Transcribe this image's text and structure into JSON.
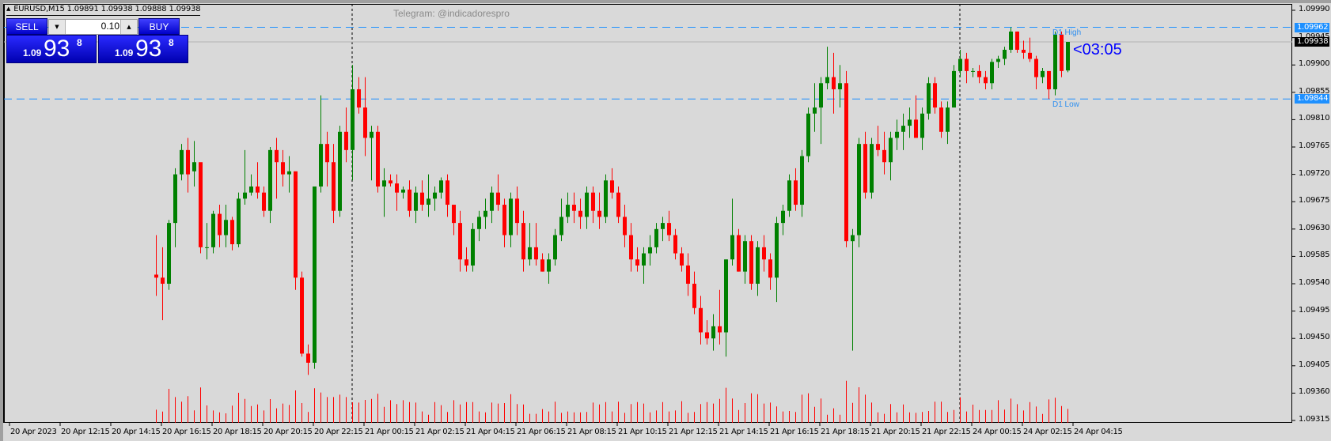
{
  "header": {
    "symbol_line": "EURUSD,M15  1.09891 1.09938 1.09888 1.09938",
    "watermark": "Telegram: @indicadorespro"
  },
  "trade_panel": {
    "sell_label": "SELL",
    "buy_label": "BUY",
    "lot_value": "0.10",
    "lot_down_icon": "▼",
    "lot_up_icon": "▲",
    "sell_price": {
      "prefix": "1.09",
      "big": "93",
      "sup": "8"
    },
    "buy_price": {
      "prefix": "1.09",
      "big": "93",
      "sup": "8"
    }
  },
  "countdown": "<03:05",
  "levels": {
    "d1_high": {
      "label": "D1 High",
      "price": "1.09962",
      "color": "#1e90ff"
    },
    "d1_low": {
      "label": "D1 Low",
      "price": "1.09844",
      "color": "#1e90ff"
    },
    "bid": {
      "price": "1.09938"
    }
  },
  "colors": {
    "background": "#d9d9d9",
    "bull": "#008000",
    "bear": "#ff0000",
    "volume": "#ff0000",
    "level_line": "#1e90ff",
    "bid_line": "#b4b4b4"
  },
  "chart_data": {
    "type": "candlestick",
    "title": "EURUSD,M15",
    "ohlc_header": {
      "open": 1.09891,
      "high": 1.09938,
      "low": 1.09888,
      "close": 1.09938
    },
    "ylim": [
      1.09315,
      1.09995
    ],
    "y_ticks": [
      "1.09990",
      "1.09945",
      "1.09900",
      "1.09855",
      "1.09810",
      "1.09765",
      "1.09720",
      "1.09675",
      "1.09630",
      "1.09585",
      "1.09540",
      "1.09495",
      "1.09450",
      "1.09405",
      "1.09360",
      "1.09315"
    ],
    "x_ticks": [
      "20 Apr 2023",
      "20 Apr 12:15",
      "20 Apr 14:15",
      "20 Apr 16:15",
      "20 Apr 18:15",
      "20 Apr 20:15",
      "20 Apr 22:15",
      "21 Apr 00:15",
      "21 Apr 02:15",
      "21 Apr 04:15",
      "21 Apr 06:15",
      "21 Apr 08:15",
      "21 Apr 10:15",
      "21 Apr 12:15",
      "21 Apr 14:15",
      "21 Apr 16:15",
      "21 Apr 18:15",
      "21 Apr 20:15",
      "21 Apr 22:15",
      "24 Apr 00:15",
      "24 Apr 02:15",
      "24 Apr 04:15"
    ],
    "horizontal_levels": [
      {
        "name": "D1 High",
        "value": 1.09962
      },
      {
        "name": "D1 Low",
        "value": 1.09844
      },
      {
        "name": "Bid",
        "value": 1.09938
      }
    ],
    "period_separators": [
      "21 Apr 00:00",
      "24 Apr 00:00"
    ],
    "candles": [
      [
        1.09555,
        1.0962,
        1.0952,
        1.0955
      ],
      [
        1.0955,
        1.096,
        1.0948,
        1.0954
      ],
      [
        1.0954,
        1.09645,
        1.0953,
        1.0964
      ],
      [
        1.0964,
        1.0973,
        1.096,
        1.0972
      ],
      [
        1.0972,
        1.0977,
        1.0971,
        1.0976
      ],
      [
        1.0976,
        1.0978,
        1.0969,
        1.0972
      ],
      [
        1.09725,
        1.09775,
        1.097,
        1.0974
      ],
      [
        1.0974,
        1.09725,
        1.0959,
        1.096
      ],
      [
        1.096,
        1.0964,
        1.0958,
        1.096
      ],
      [
        1.096,
        1.0966,
        1.0959,
        1.09655
      ],
      [
        1.09655,
        1.0967,
        1.096,
        1.0962
      ],
      [
        1.0962,
        1.0967,
        1.096,
        1.09645
      ],
      [
        1.09645,
        1.0965,
        1.09595,
        1.09605
      ],
      [
        1.09605,
        1.0969,
        1.096,
        1.0968
      ],
      [
        1.0968,
        1.0976,
        1.0967,
        1.0969
      ],
      [
        1.0969,
        1.0972,
        1.09685,
        1.097
      ],
      [
        1.097,
        1.0974,
        1.0968,
        1.0969
      ],
      [
        1.0969,
        1.097,
        1.0965,
        1.0966
      ],
      [
        1.0966,
        1.09765,
        1.0964,
        1.0976
      ],
      [
        1.0976,
        1.0978,
        1.0968,
        1.0974
      ],
      [
        1.0974,
        1.0976,
        1.097,
        1.0972
      ],
      [
        1.0972,
        1.0975,
        1.0969,
        1.09725
      ],
      [
        1.09725,
        1.0968,
        1.0953,
        1.0955
      ],
      [
        1.0955,
        1.0956,
        1.0942,
        1.09425
      ],
      [
        1.09425,
        1.0944,
        1.0939,
        1.0941
      ],
      [
        1.0941,
        1.097,
        1.094,
        1.097
      ],
      [
        1.097,
        1.0985,
        1.0969,
        1.0977
      ],
      [
        1.0977,
        1.0979,
        1.097,
        1.0974
      ],
      [
        1.0974,
        1.0977,
        1.0964,
        1.0966
      ],
      [
        1.0966,
        1.098,
        1.0965,
        1.0979
      ],
      [
        1.0979,
        1.0983,
        1.0974,
        1.0976
      ],
      [
        1.0976,
        1.099,
        1.0971,
        1.0986
      ],
      [
        1.0986,
        1.0988,
        1.0982,
        1.0983
      ],
      [
        1.0983,
        1.0988,
        1.0975,
        1.0978
      ],
      [
        1.0978,
        1.098,
        1.0971,
        1.0979
      ],
      [
        1.0979,
        1.098,
        1.0969,
        1.097
      ],
      [
        1.097,
        1.0973,
        1.0965,
        1.0971
      ],
      [
        1.0971,
        1.0972,
        1.097,
        1.09705
      ],
      [
        1.09705,
        1.0972,
        1.0966,
        1.0969
      ],
      [
        1.0969,
        1.097,
        1.0968,
        1.09695
      ],
      [
        1.09695,
        1.0971,
        1.0965,
        1.0966
      ],
      [
        1.0966,
        1.097,
        1.0964,
        1.0969
      ],
      [
        1.0969,
        1.0971,
        1.0966,
        1.0967
      ],
      [
        1.0967,
        1.0972,
        1.0965,
        1.0968
      ],
      [
        1.0968,
        1.097,
        1.0966,
        1.0969
      ],
      [
        1.0969,
        1.09715,
        1.0968,
        1.0971
      ],
      [
        1.0971,
        1.0972,
        1.0965,
        1.0967
      ],
      [
        1.0967,
        1.0966,
        1.0962,
        1.0964
      ],
      [
        1.0964,
        1.0966,
        1.0956,
        1.0958
      ],
      [
        1.0958,
        1.096,
        1.0956,
        1.0957
      ],
      [
        1.0957,
        1.0964,
        1.0956,
        1.0963
      ],
      [
        1.0963,
        1.0966,
        1.0961,
        1.0965
      ],
      [
        1.0965,
        1.0968,
        1.0963,
        1.0966
      ],
      [
        1.0966,
        1.097,
        1.0964,
        1.0969
      ],
      [
        1.0969,
        1.0972,
        1.0966,
        1.0967
      ],
      [
        1.0967,
        1.0968,
        1.096,
        1.0962
      ],
      [
        1.0962,
        1.0969,
        1.096,
        1.0968
      ],
      [
        1.0968,
        1.097,
        1.0962,
        1.0964
      ],
      [
        1.0964,
        1.0966,
        1.0956,
        1.0958
      ],
      [
        1.0958,
        1.0964,
        1.0957,
        1.096
      ],
      [
        1.096,
        1.0964,
        1.0957,
        1.0958
      ],
      [
        1.0958,
        1.0959,
        1.0956,
        1.0956
      ],
      [
        1.0956,
        1.0959,
        1.0954,
        1.0958
      ],
      [
        1.0958,
        1.0963,
        1.0957,
        1.0962
      ],
      [
        1.0962,
        1.0968,
        1.0961,
        1.0965
      ],
      [
        1.0965,
        1.0969,
        1.0964,
        1.0967
      ],
      [
        1.0967,
        1.0969,
        1.0964,
        1.0966
      ],
      [
        1.0966,
        1.0968,
        1.0963,
        1.0965
      ],
      [
        1.0965,
        1.097,
        1.0963,
        1.0969
      ],
      [
        1.0969,
        1.097,
        1.0964,
        1.0966
      ],
      [
        1.0966,
        1.0969,
        1.0963,
        1.0965
      ],
      [
        1.0965,
        1.0972,
        1.0964,
        1.0971
      ],
      [
        1.0971,
        1.0973,
        1.0968,
        1.0969
      ],
      [
        1.0969,
        1.097,
        1.0964,
        1.0965
      ],
      [
        1.0965,
        1.0967,
        1.096,
        1.0962
      ],
      [
        1.0962,
        1.0964,
        1.0956,
        1.0958
      ],
      [
        1.0958,
        1.096,
        1.0956,
        1.0957
      ],
      [
        1.0957,
        1.096,
        1.0954,
        1.0959
      ],
      [
        1.0959,
        1.0962,
        1.0957,
        1.096
      ],
      [
        1.096,
        1.0964,
        1.0959,
        1.0963
      ],
      [
        1.0963,
        1.0965,
        1.0961,
        1.0964
      ],
      [
        1.0964,
        1.0966,
        1.0961,
        1.0962
      ],
      [
        1.0962,
        1.0963,
        1.0958,
        1.0959
      ],
      [
        1.0959,
        1.096,
        1.0956,
        1.0957
      ],
      [
        1.0957,
        1.0959,
        1.0952,
        1.0954
      ],
      [
        1.0954,
        1.0956,
        1.0949,
        1.095
      ],
      [
        1.095,
        1.0952,
        1.0944,
        1.0946
      ],
      [
        1.0946,
        1.0948,
        1.0944,
        1.0945
      ],
      [
        1.0945,
        1.0949,
        1.0943,
        1.0947
      ],
      [
        1.0947,
        1.0953,
        1.0944,
        1.0946
      ],
      [
        1.0946,
        1.0958,
        1.0942,
        1.0958
      ],
      [
        1.0958,
        1.0968,
        1.0957,
        1.0962
      ],
      [
        1.0962,
        1.0963,
        1.0956,
        1.0956
      ],
      [
        1.0956,
        1.0962,
        1.0954,
        1.0961
      ],
      [
        1.0961,
        1.0962,
        1.0953,
        1.0954
      ],
      [
        1.0954,
        1.0961,
        1.0952,
        1.096
      ],
      [
        1.096,
        1.0962,
        1.0956,
        1.0958
      ],
      [
        1.0958,
        1.0959,
        1.0953,
        1.0955
      ],
      [
        1.0955,
        1.0965,
        1.0951,
        1.0964
      ],
      [
        1.0964,
        1.0967,
        1.0962,
        1.0966
      ],
      [
        1.0966,
        1.0972,
        1.0965,
        1.0971
      ],
      [
        1.0971,
        1.0973,
        1.0966,
        1.0967
      ],
      [
        1.0967,
        1.0976,
        1.0965,
        1.0975
      ],
      [
        1.0975,
        1.0983,
        1.0974,
        1.0982
      ],
      [
        1.0982,
        1.0987,
        1.0979,
        1.0983
      ],
      [
        1.0983,
        1.0988,
        1.0977,
        1.0987
      ],
      [
        1.0987,
        1.0993,
        1.0986,
        1.0988
      ],
      [
        1.0988,
        1.0992,
        1.0982,
        1.0986
      ],
      [
        1.0986,
        1.099,
        1.0983,
        1.0987
      ],
      [
        1.0987,
        1.0989,
        1.096,
        1.0961
      ],
      [
        1.0961,
        1.0963,
        1.0943,
        1.0962
      ],
      [
        1.0962,
        1.0978,
        1.096,
        1.0977
      ],
      [
        1.0977,
        1.0979,
        1.0968,
        1.0969
      ],
      [
        1.0969,
        1.0978,
        1.0968,
        1.0977
      ],
      [
        1.0977,
        1.098,
        1.0975,
        1.0976
      ],
      [
        1.0976,
        1.0979,
        1.0972,
        1.0974
      ],
      [
        1.0974,
        1.0979,
        1.0971,
        1.0978
      ],
      [
        1.0978,
        1.0981,
        1.0976,
        1.0979
      ],
      [
        1.0979,
        1.0982,
        1.0976,
        1.098
      ],
      [
        1.098,
        1.0983,
        1.0978,
        1.0981
      ],
      [
        1.0981,
        1.0985,
        1.0978,
        1.0978
      ],
      [
        1.0978,
        1.0983,
        1.0976,
        1.0982
      ],
      [
        1.0982,
        1.0988,
        1.0981,
        1.0987
      ],
      [
        1.0987,
        1.0988,
        1.0982,
        1.0983
      ],
      [
        1.0983,
        1.0984,
        1.0978,
        1.0979
      ],
      [
        1.0979,
        1.0984,
        1.0977,
        1.0983
      ],
      [
        1.0983,
        1.099,
        1.0983,
        1.0989
      ],
      [
        1.0989,
        1.09925,
        1.0988,
        1.0991
      ],
      [
        1.0991,
        1.0992,
        1.0987,
        1.0989
      ],
      [
        1.0989,
        1.09895,
        1.0988,
        1.0989
      ],
      [
        1.0989,
        1.099,
        1.0987,
        1.0988
      ],
      [
        1.0988,
        1.0989,
        1.0986,
        1.0987
      ],
      [
        1.0987,
        1.0991,
        1.0986,
        1.09905
      ],
      [
        1.09905,
        1.09915,
        1.09895,
        1.0991
      ],
      [
        1.0991,
        1.0993,
        1.099,
        1.09925
      ],
      [
        1.09925,
        1.09962,
        1.0992,
        1.09955
      ],
      [
        1.09955,
        1.09955,
        1.0992,
        1.09925
      ],
      [
        1.09925,
        1.0994,
        1.0991,
        1.0992
      ],
      [
        1.0992,
        1.09945,
        1.09905,
        1.0991
      ],
      [
        1.0991,
        1.09915,
        1.0986,
        1.0988
      ],
      [
        1.0988,
        1.09895,
        1.0987,
        1.0989
      ],
      [
        1.0989,
        1.09885,
        1.09844,
        1.0986
      ],
      [
        1.0986,
        1.09955,
        1.0985,
        1.0995
      ],
      [
        1.0995,
        1.09955,
        1.0988,
        1.0989
      ],
      [
        1.09891,
        1.09938,
        1.09888,
        1.09938
      ]
    ]
  },
  "axis_tags": {
    "d1_high_tag": "1.09962",
    "bid_tag": "1.09938",
    "d1_low_tag": "1.09844"
  }
}
